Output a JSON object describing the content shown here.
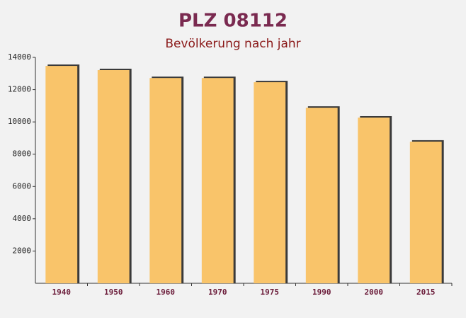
{
  "chart_data": {
    "type": "bar",
    "title": "PLZ 08112",
    "subtitle": "Bevölkerung nach jahr",
    "categories": [
      "1940",
      "1950",
      "1960",
      "1970",
      "1975",
      "1990",
      "2000",
      "2015"
    ],
    "values": [
      13470,
      13210,
      12720,
      12720,
      12460,
      10880,
      10270,
      8780
    ],
    "color": "#f9c46a",
    "ylim": [
      0,
      14000
    ],
    "yticks": [
      2000,
      4000,
      6000,
      8000,
      10000,
      12000,
      14000
    ],
    "grid": false
  }
}
